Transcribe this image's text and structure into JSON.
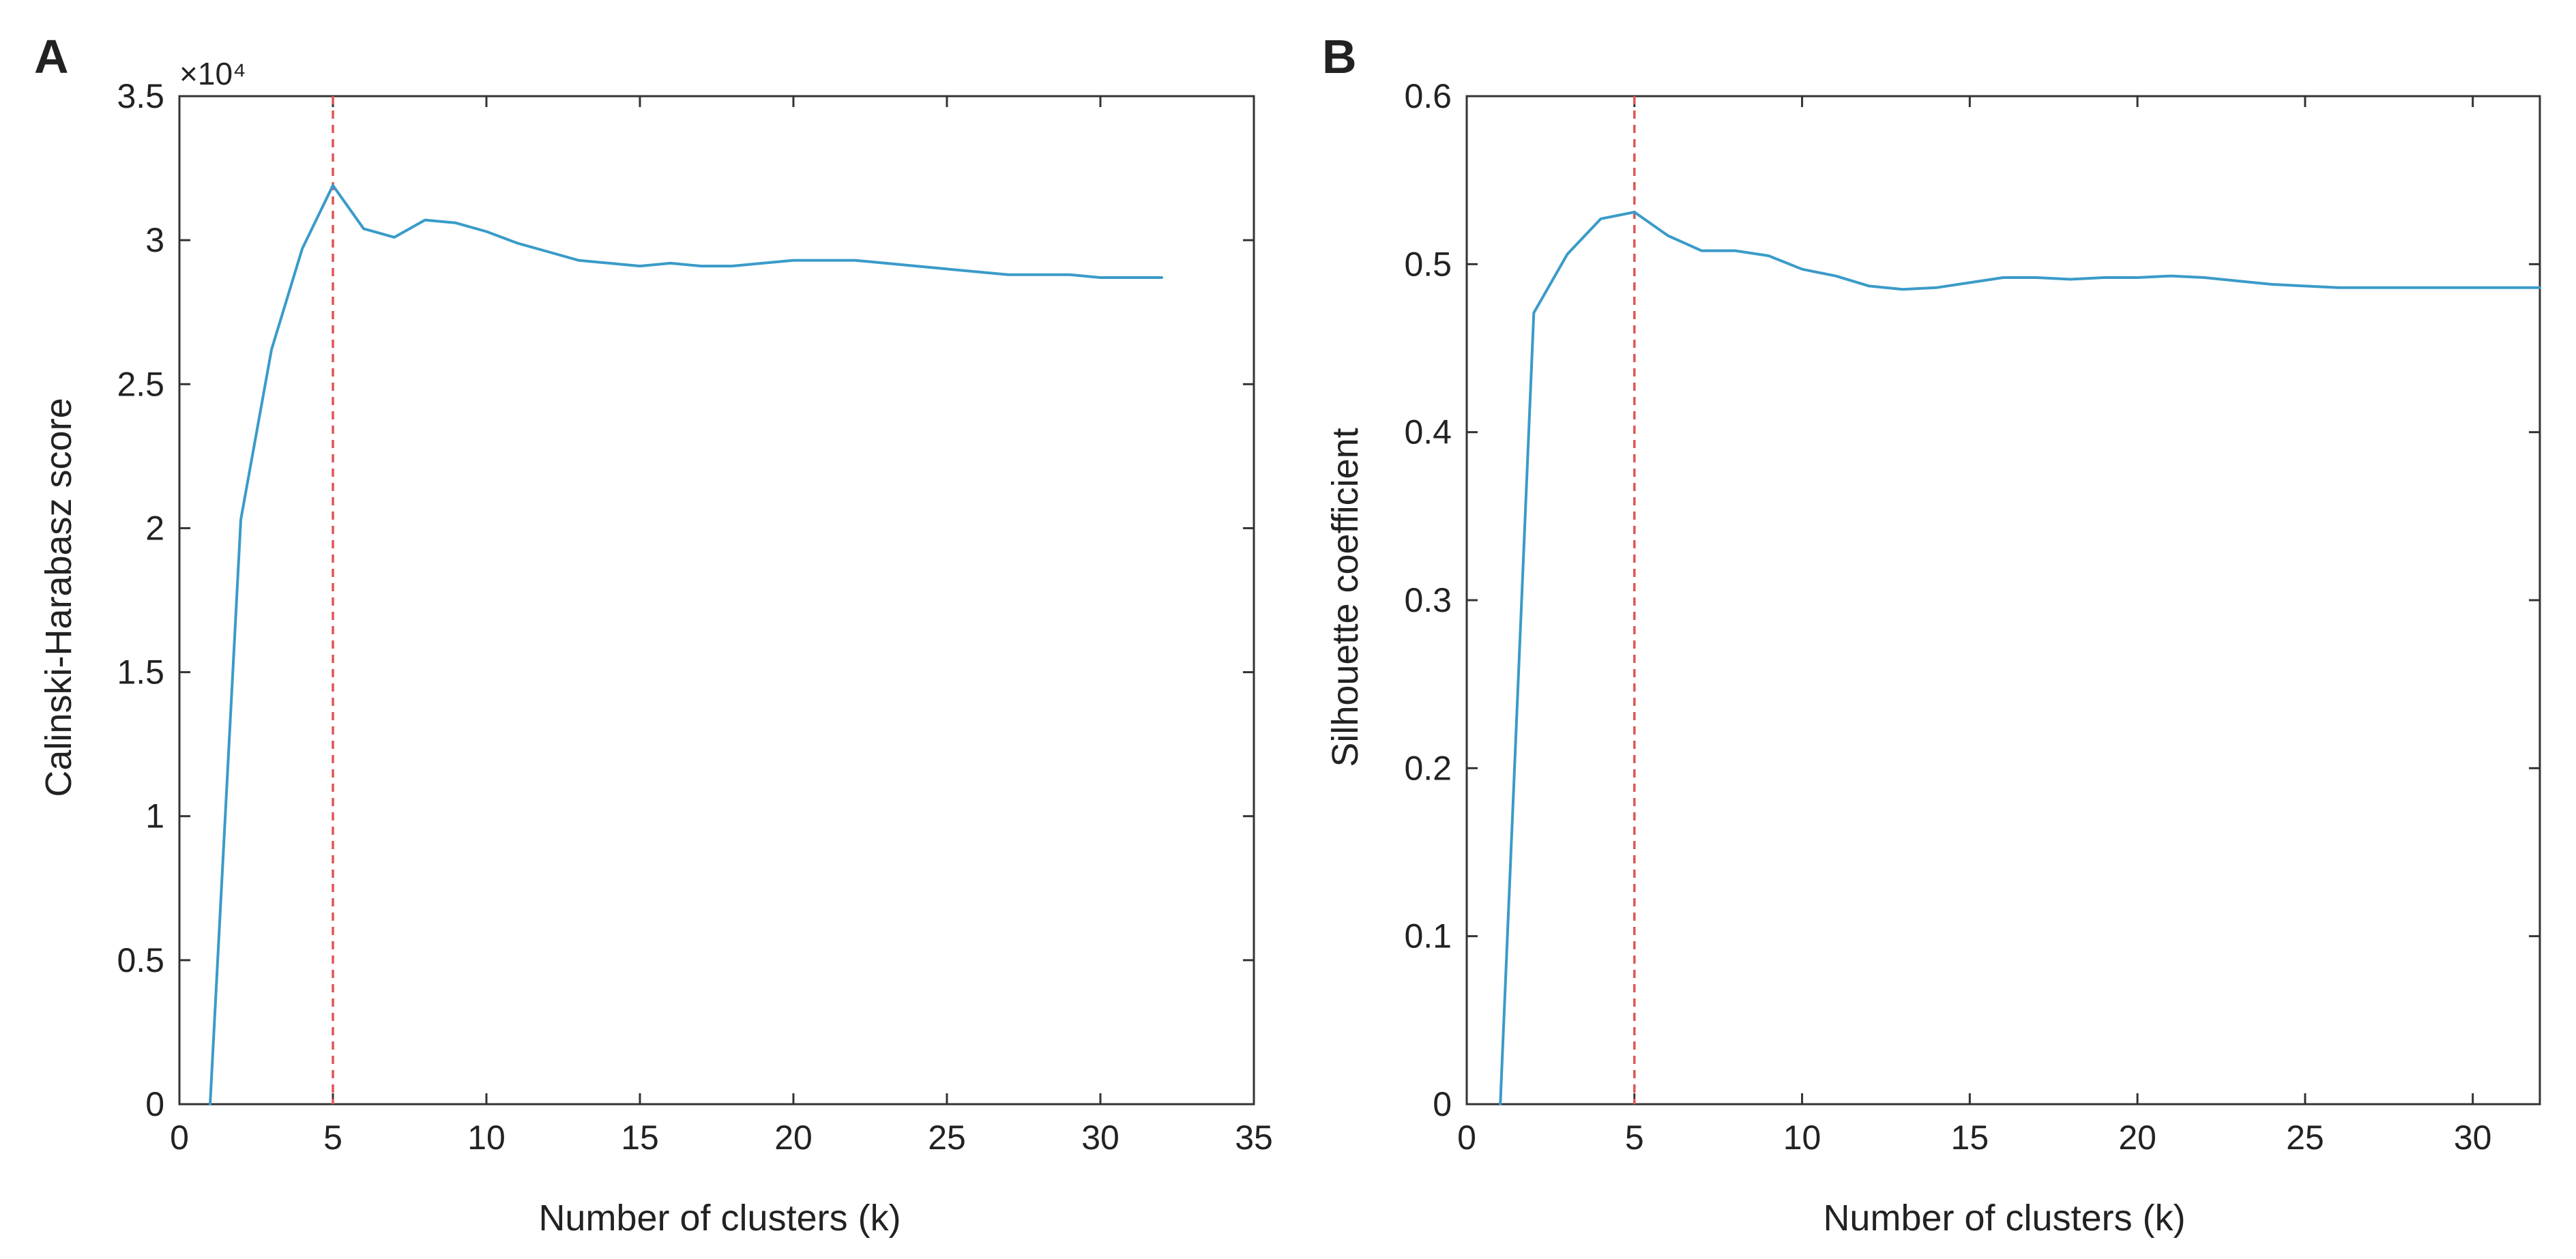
{
  "colors": {
    "line": "#3a9bc9",
    "marker": "#e05555",
    "axis": "#333333"
  },
  "chart_data": [
    {
      "panel_label": "A",
      "type": "line",
      "xlabel": "Number of clusters (k)",
      "ylabel": "Calinski-Harabasz score",
      "exponent_label": "×10⁴",
      "xlim": [
        0,
        35
      ],
      "ylim": [
        0,
        3.5
      ],
      "xticks": [
        0,
        5,
        10,
        15,
        20,
        25,
        30,
        35
      ],
      "xtick_labels": [
        "0",
        "5",
        "10",
        "15",
        "20",
        "25",
        "30",
        "35"
      ],
      "yticks": [
        0,
        0.5,
        1,
        1.5,
        2,
        2.5,
        3,
        3.5
      ],
      "ytick_labels": [
        "0",
        "0.5",
        "1",
        "1.5",
        "2",
        "2.5",
        "3",
        "3.5"
      ],
      "vline_x": 5,
      "series": [
        {
          "name": "Calinski-Harabasz",
          "x": [
            1,
            2,
            3,
            4,
            5,
            6,
            7,
            8,
            9,
            10,
            11,
            12,
            13,
            14,
            15,
            16,
            17,
            18,
            19,
            20,
            21,
            22,
            23,
            24,
            25,
            26,
            27,
            28,
            29,
            30,
            31,
            32
          ],
          "y": [
            0,
            2.03,
            2.62,
            2.97,
            3.19,
            3.04,
            3.01,
            3.07,
            3.06,
            3.03,
            2.99,
            2.96,
            2.93,
            2.92,
            2.91,
            2.92,
            2.91,
            2.91,
            2.92,
            2.93,
            2.93,
            2.93,
            2.92,
            2.91,
            2.9,
            2.89,
            2.88,
            2.88,
            2.88,
            2.87,
            2.87,
            2.87
          ]
        }
      ]
    },
    {
      "panel_label": "B",
      "type": "line",
      "xlabel": "Number of clusters (k)",
      "ylabel": "Silhouette coefficient",
      "exponent_label": "",
      "xlim": [
        0,
        32
      ],
      "ylim": [
        0,
        0.6
      ],
      "xticks": [
        0,
        5,
        10,
        15,
        20,
        25,
        30
      ],
      "xtick_labels": [
        "0",
        "5",
        "10",
        "15",
        "20",
        "25",
        "30"
      ],
      "yticks": [
        0,
        0.1,
        0.2,
        0.3,
        0.4,
        0.5,
        0.6
      ],
      "ytick_labels": [
        "0",
        "0.1",
        "0.2",
        "0.3",
        "0.4",
        "0.5",
        "0.6"
      ],
      "vline_x": 5,
      "series": [
        {
          "name": "Silhouette",
          "x": [
            1,
            2,
            3,
            4,
            5,
            6,
            7,
            8,
            9,
            10,
            11,
            12,
            13,
            14,
            15,
            16,
            17,
            18,
            19,
            20,
            21,
            22,
            23,
            24,
            25,
            26,
            27,
            28,
            29,
            30,
            31,
            32
          ],
          "y": [
            0,
            0.471,
            0.506,
            0.527,
            0.531,
            0.517,
            0.508,
            0.508,
            0.505,
            0.497,
            0.493,
            0.487,
            0.485,
            0.486,
            0.489,
            0.492,
            0.492,
            0.491,
            0.492,
            0.492,
            0.493,
            0.492,
            0.49,
            0.488,
            0.487,
            0.486,
            0.486,
            0.486,
            0.486,
            0.486,
            0.486,
            0.486
          ]
        }
      ]
    }
  ]
}
